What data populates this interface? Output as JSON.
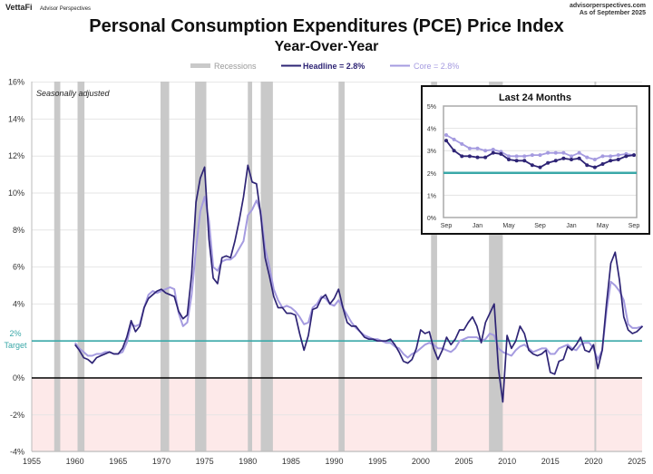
{
  "header": {
    "brand": "VettaFi",
    "brand_sub": "Advisor Perspectives",
    "site": "advisorperspectives.com",
    "as_of": "As of September 2025"
  },
  "colors": {
    "headline": "#2e2475",
    "core": "#a59be0",
    "recession": "#c9c9c9",
    "target": "#3aa8a8",
    "negative_zone": "#fde9e9"
  },
  "chart_data": [
    {
      "type": "line",
      "title": "Personal Consumption Expenditures (PCE) Price Index",
      "subtitle": "Year-Over-Year",
      "annotation": "Seasonally adjusted",
      "target_label": [
        "2%",
        "Target"
      ],
      "target": 2,
      "legend": {
        "placement": "top-center",
        "recessions": "Recessions",
        "headline": "Headline = 2.8%",
        "core": "Core = 2.8%"
      },
      "xlim": [
        1955,
        2025.75
      ],
      "ylim": [
        -4,
        16
      ],
      "grid": true,
      "xticks": [
        "1955",
        "1960",
        "1965",
        "1970",
        "1975",
        "1980",
        "1985",
        "1990",
        "1995",
        "2000",
        "2005",
        "2010",
        "2015",
        "2020",
        "2025"
      ],
      "yticks": [
        "-4%",
        "-2%",
        "0%",
        "2%",
        "4%",
        "6%",
        "8%",
        "10%",
        "12%",
        "14%",
        "16%"
      ],
      "recessions": [
        [
          1957.6,
          1958.3
        ],
        [
          1960.3,
          1961.1
        ],
        [
          1969.9,
          1970.9
        ],
        [
          1973.9,
          1975.2
        ],
        [
          1980.0,
          1980.5
        ],
        [
          1981.5,
          1982.9
        ],
        [
          1990.5,
          1991.2
        ],
        [
          2001.2,
          2001.9
        ],
        [
          2007.9,
          2009.5
        ],
        [
          2020.1,
          2020.3
        ]
      ],
      "x": [
        1960,
        1960.5,
        1961,
        1961.5,
        1962,
        1962.5,
        1963,
        1963.5,
        1964,
        1964.5,
        1965,
        1965.5,
        1966,
        1966.5,
        1967,
        1967.5,
        1968,
        1968.5,
        1969,
        1969.5,
        1970,
        1970.5,
        1971,
        1971.5,
        1972,
        1972.5,
        1973,
        1973.5,
        1974,
        1974.5,
        1975,
        1975.5,
        1976,
        1976.5,
        1977,
        1977.5,
        1978,
        1978.5,
        1979,
        1979.5,
        1980,
        1980.5,
        1981,
        1981.5,
        1982,
        1982.5,
        1983,
        1983.5,
        1984,
        1984.5,
        1985,
        1985.5,
        1986,
        1986.5,
        1987,
        1987.5,
        1988,
        1988.5,
        1989,
        1989.5,
        1990,
        1990.5,
        1991,
        1991.5,
        1992,
        1992.5,
        1993,
        1993.5,
        1994,
        1994.5,
        1995,
        1995.5,
        1996,
        1996.5,
        1997,
        1997.5,
        1998,
        1998.5,
        1999,
        1999.5,
        2000,
        2000.5,
        2001,
        2001.5,
        2002,
        2002.5,
        2003,
        2003.5,
        2004,
        2004.5,
        2005,
        2005.5,
        2006,
        2006.5,
        2007,
        2007.5,
        2008,
        2008.5,
        2009,
        2009.5,
        2010,
        2010.5,
        2011,
        2011.5,
        2012,
        2012.5,
        2013,
        2013.5,
        2014,
        2014.5,
        2015,
        2015.5,
        2016,
        2016.5,
        2017,
        2017.5,
        2018,
        2018.5,
        2019,
        2019.5,
        2020,
        2020.5,
        2021,
        2021.5,
        2022,
        2022.5,
        2023,
        2023.5,
        2024,
        2024.5,
        2025,
        2025.67
      ],
      "series": [
        {
          "name": "Headline",
          "values": [
            1.8,
            1.5,
            1.1,
            1.0,
            0.8,
            1.1,
            1.2,
            1.3,
            1.4,
            1.3,
            1.3,
            1.6,
            2.2,
            3.1,
            2.5,
            2.8,
            3.8,
            4.3,
            4.5,
            4.7,
            4.8,
            4.6,
            4.5,
            4.4,
            3.6,
            3.2,
            3.4,
            5.6,
            9.5,
            10.8,
            11.4,
            7.5,
            5.4,
            5.1,
            6.5,
            6.6,
            6.5,
            7.4,
            8.5,
            9.8,
            11.5,
            10.6,
            10.5,
            8.8,
            6.5,
            5.5,
            4.4,
            3.8,
            3.8,
            3.5,
            3.5,
            3.4,
            2.4,
            1.5,
            2.3,
            3.7,
            3.8,
            4.3,
            4.5,
            4.0,
            4.3,
            4.8,
            3.8,
            3.0,
            2.8,
            2.8,
            2.5,
            2.2,
            2.1,
            2.1,
            2.0,
            2.0,
            2.0,
            2.1,
            1.8,
            1.4,
            0.9,
            0.8,
            1.0,
            1.6,
            2.6,
            2.4,
            2.5,
            1.6,
            1.0,
            1.5,
            2.2,
            1.8,
            2.1,
            2.6,
            2.6,
            3.0,
            3.3,
            2.8,
            1.9,
            3.0,
            3.5,
            4.0,
            0.5,
            -1.3,
            2.3,
            1.6,
            2.0,
            2.8,
            2.4,
            1.5,
            1.3,
            1.2,
            1.3,
            1.5,
            0.3,
            0.2,
            0.9,
            1.0,
            1.7,
            1.5,
            1.8,
            2.2,
            1.5,
            1.4,
            1.8,
            0.5,
            1.5,
            4.0,
            6.2,
            6.8,
            5.3,
            3.3,
            2.6,
            2.4,
            2.5,
            2.8
          ]
        },
        {
          "name": "Core",
          "values": [
            1.9,
            1.6,
            1.4,
            1.2,
            1.2,
            1.3,
            1.3,
            1.4,
            1.4,
            1.3,
            1.3,
            1.4,
            1.9,
            2.9,
            2.8,
            2.9,
            3.8,
            4.5,
            4.7,
            4.6,
            4.7,
            4.8,
            4.9,
            4.8,
            3.5,
            2.8,
            3.0,
            4.5,
            7.0,
            9.0,
            9.8,
            8.5,
            6.0,
            5.8,
            6.3,
            6.4,
            6.4,
            6.6,
            7.0,
            7.4,
            8.8,
            9.1,
            9.6,
            9.0,
            7.0,
            6.0,
            4.8,
            4.2,
            3.8,
            3.9,
            3.8,
            3.6,
            3.3,
            2.9,
            3.0,
            3.8,
            4.0,
            4.4,
            4.3,
            4.0,
            3.9,
            4.2,
            3.8,
            3.4,
            3.0,
            2.7,
            2.5,
            2.3,
            2.2,
            2.1,
            2.1,
            2.0,
            1.9,
            1.9,
            1.7,
            1.6,
            1.3,
            1.1,
            1.3,
            1.4,
            1.6,
            1.8,
            1.9,
            1.8,
            1.6,
            1.6,
            1.5,
            1.4,
            1.6,
            2.0,
            2.1,
            2.2,
            2.2,
            2.2,
            2.0,
            2.1,
            2.4,
            2.3,
            1.6,
            1.4,
            1.3,
            1.2,
            1.5,
            1.7,
            1.8,
            1.6,
            1.4,
            1.5,
            1.6,
            1.6,
            1.3,
            1.3,
            1.6,
            1.7,
            1.8,
            1.6,
            1.5,
            1.8,
            1.9,
            1.9,
            1.6,
            1.0,
            1.5,
            3.6,
            5.2,
            5.0,
            4.7,
            4.2,
            2.9,
            2.7,
            2.7,
            2.8
          ]
        }
      ]
    },
    {
      "type": "line",
      "title": "Last 24 Months",
      "ylim": [
        0,
        5
      ],
      "yticks": [
        "0%",
        "1%",
        "2%",
        "3%",
        "4%",
        "5%"
      ],
      "xticks": [
        "Sep",
        "Jan",
        "May",
        "Sep",
        "Jan",
        "May",
        "Sep"
      ],
      "target": 2,
      "grid": true,
      "series": [
        {
          "name": "Headline",
          "values": [
            3.45,
            3.0,
            2.75,
            2.75,
            2.7,
            2.7,
            2.9,
            2.85,
            2.6,
            2.55,
            2.55,
            2.35,
            2.25,
            2.45,
            2.55,
            2.65,
            2.6,
            2.65,
            2.35,
            2.25,
            2.4,
            2.55,
            2.6,
            2.75,
            2.8
          ]
        },
        {
          "name": "Core",
          "values": [
            3.7,
            3.5,
            3.3,
            3.1,
            3.1,
            3.0,
            3.05,
            2.95,
            2.75,
            2.75,
            2.75,
            2.8,
            2.8,
            2.9,
            2.9,
            2.9,
            2.75,
            2.9,
            2.7,
            2.6,
            2.75,
            2.75,
            2.8,
            2.85,
            2.8
          ]
        }
      ]
    }
  ]
}
